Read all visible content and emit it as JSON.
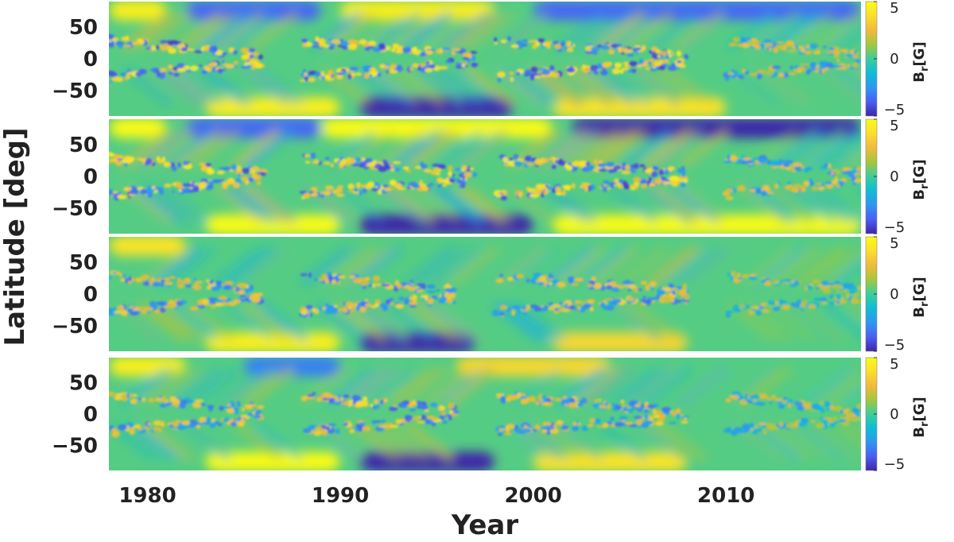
{
  "chart_data": {
    "type": "heatmap",
    "title": "",
    "xlabel": "Year",
    "ylabel": "Latitude [deg]",
    "xlim": [
      1978,
      2017
    ],
    "ylim": [
      -90,
      90
    ],
    "x_ticks": [
      1980,
      1990,
      2000,
      2010
    ],
    "x_tick_labels": [
      "1980",
      "1990",
      "2000",
      "2010"
    ],
    "y_ticks": [
      50,
      0,
      -50
    ],
    "y_tick_labels": [
      "50",
      "0",
      "−50"
    ],
    "colorbar": {
      "label_main": "B",
      "label_sub": "r",
      "label_unit": "[G]",
      "range": [
        -5,
        5
      ],
      "ticks": [
        5,
        0,
        -5
      ],
      "tick_labels": [
        "5",
        "0",
        "−5"
      ],
      "colormap": "parula",
      "colors": [
        "#3e26a8",
        "#4a5ef4",
        "#2d97f0",
        "#10bcd6",
        "#3ccd9b",
        "#a4c73d",
        "#f0ba3c",
        "#fade2d",
        "#f9fb15"
      ]
    },
    "panels": [
      {
        "description_id": "panel-1",
        "polar_bands": [
          {
            "hemisphere": "north",
            "from": 1978,
            "to": 1981,
            "value": 4.5
          },
          {
            "hemisphere": "north",
            "from": 1982,
            "to": 1989,
            "value": -3.5
          },
          {
            "hemisphere": "north",
            "from": 1990,
            "to": 1998,
            "value": 4.5
          },
          {
            "hemisphere": "north",
            "from": 2000,
            "to": 2017,
            "value": -3.5
          },
          {
            "hemisphere": "south",
            "from": 1983,
            "to": 1990,
            "value": 4.5
          },
          {
            "hemisphere": "south",
            "from": 1991,
            "to": 1999,
            "value": -5
          },
          {
            "hemisphere": "south",
            "from": 2001,
            "to": 2010,
            "value": 4
          }
        ],
        "activity_belts": [
          {
            "from": 1978,
            "to": 1986,
            "amplitude": 4.5
          },
          {
            "from": 1988,
            "to": 1997,
            "amplitude": 4.5
          },
          {
            "from": 1998,
            "to": 2008,
            "amplitude": 4.5
          },
          {
            "from": 2010,
            "to": 2017,
            "amplitude": 3
          }
        ]
      },
      {
        "description_id": "panel-2",
        "polar_bands": [
          {
            "hemisphere": "north",
            "from": 1978,
            "to": 1981,
            "value": 5
          },
          {
            "hemisphere": "north",
            "from": 1982,
            "to": 1989,
            "value": -3.5
          },
          {
            "hemisphere": "north",
            "from": 1989,
            "to": 2001,
            "value": 5
          },
          {
            "hemisphere": "north",
            "from": 2002,
            "to": 2017,
            "value": -5
          },
          {
            "hemisphere": "south",
            "from": 1983,
            "to": 1990,
            "value": 5
          },
          {
            "hemisphere": "south",
            "from": 1991,
            "to": 2000,
            "value": -5
          },
          {
            "hemisphere": "south",
            "from": 2001,
            "to": 2017,
            "value": 5
          }
        ],
        "activity_belts": [
          {
            "from": 1978,
            "to": 1986,
            "amplitude": 4.5
          },
          {
            "from": 1988,
            "to": 1997,
            "amplitude": 4.5
          },
          {
            "from": 1998,
            "to": 2008,
            "amplitude": 4.5
          },
          {
            "from": 2010,
            "to": 2017,
            "amplitude": 3
          }
        ]
      },
      {
        "description_id": "panel-3",
        "polar_bands": [
          {
            "hemisphere": "north",
            "from": 1978,
            "to": 1982,
            "value": 4
          },
          {
            "hemisphere": "south",
            "from": 1983,
            "to": 1990,
            "value": 4.5
          },
          {
            "hemisphere": "south",
            "from": 1991,
            "to": 1997,
            "value": -5
          },
          {
            "hemisphere": "south",
            "from": 2001,
            "to": 2008,
            "value": 3.5
          }
        ],
        "activity_belts": [
          {
            "from": 1978,
            "to": 1986,
            "amplitude": 3.5
          },
          {
            "from": 1988,
            "to": 1996,
            "amplitude": 4
          },
          {
            "from": 1998,
            "to": 2008,
            "amplitude": 3.5
          },
          {
            "from": 2010,
            "to": 2017,
            "amplitude": 2.5
          }
        ]
      },
      {
        "description_id": "panel-4",
        "polar_bands": [
          {
            "hemisphere": "north",
            "from": 1978,
            "to": 1982,
            "value": 4.5
          },
          {
            "hemisphere": "north",
            "from": 1985,
            "to": 1990,
            "value": -3
          },
          {
            "hemisphere": "north",
            "from": 1996,
            "to": 2004,
            "value": 3.5
          },
          {
            "hemisphere": "south",
            "from": 1983,
            "to": 1990,
            "value": 5
          },
          {
            "hemisphere": "south",
            "from": 1991,
            "to": 1998,
            "value": -5
          },
          {
            "hemisphere": "south",
            "from": 2000,
            "to": 2008,
            "value": 4
          }
        ],
        "activity_belts": [
          {
            "from": 1978,
            "to": 1986,
            "amplitude": 3.5
          },
          {
            "from": 1988,
            "to": 1996,
            "amplitude": 4
          },
          {
            "from": 1998,
            "to": 2008,
            "amplitude": 3.5
          },
          {
            "from": 2010,
            "to": 2017,
            "amplitude": 2.5
          }
        ]
      }
    ]
  }
}
